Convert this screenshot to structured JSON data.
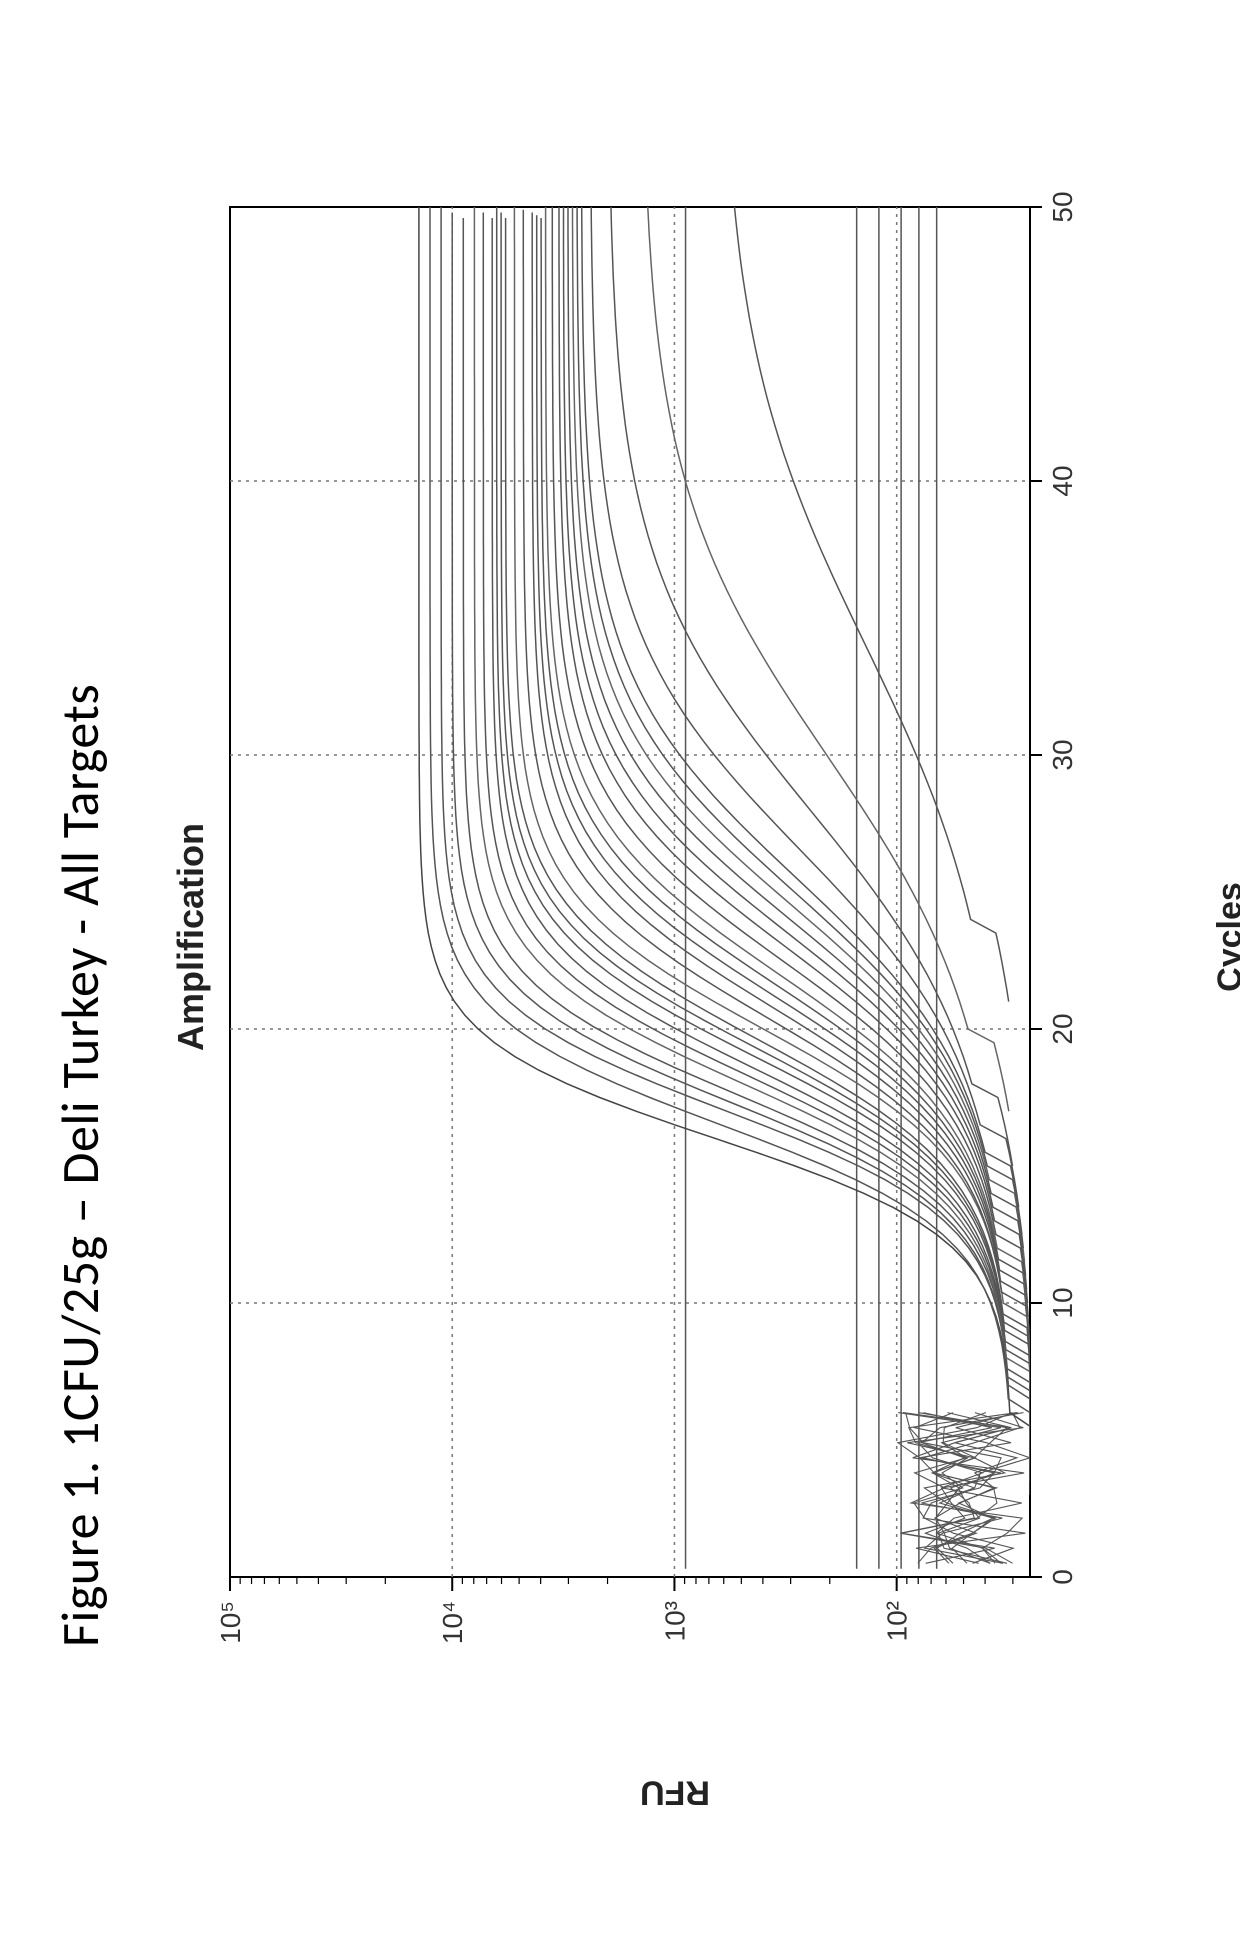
{
  "figure": {
    "title": "Figure 1. 1CFU/25g – Deli Turkey - All Targets",
    "title_fontsize": 52,
    "title_color": "#000000"
  },
  "chart": {
    "type": "line",
    "inner_title": "Amplification",
    "inner_title_fontsize": 36,
    "inner_title_weight": "bold",
    "xlabel": "Cycles",
    "ylabel": "RFU",
    "label_fontsize": 34,
    "label_weight": "bold",
    "background_color": "#ffffff",
    "axis_color": "#000000",
    "grid_color": "#777777",
    "grid_dash": "3 5",
    "xlim": [
      0,
      50
    ],
    "xticks": [
      0,
      10,
      20,
      30,
      40,
      50
    ],
    "yscale": "log",
    "ylim_log": [
      1.4,
      5.0
    ],
    "ytick_labels": [
      "10²",
      "10³",
      "10⁴",
      "10⁵"
    ],
    "ytick_values_log": [
      2,
      3,
      4,
      5
    ],
    "line_width": 1.5,
    "line_color_default": "#555555",
    "baseline_lines": [
      {
        "log_rfu": 2.95,
        "color": "#555555"
      },
      {
        "log_rfu": 2.18,
        "color": "#555555"
      },
      {
        "log_rfu": 2.08,
        "color": "#555555"
      },
      {
        "log_rfu": 1.98,
        "color": "#555555"
      },
      {
        "log_rfu": 1.9,
        "color": "#555555"
      },
      {
        "log_rfu": 1.82,
        "color": "#555555"
      }
    ],
    "early_cycle_noise": {
      "x_range": [
        0.5,
        6
      ],
      "log_rfu_range": [
        1.45,
        1.95
      ],
      "color": "#555555",
      "n_lines": 14
    },
    "sigmoid_curves": [
      {
        "mid_cycle": 16.0,
        "steepness": 0.55,
        "top_log_rfu": 4.15,
        "color": "#444444"
      },
      {
        "mid_cycle": 16.5,
        "steepness": 0.5,
        "top_log_rfu": 4.1,
        "color": "#555555"
      },
      {
        "mid_cycle": 17.0,
        "steepness": 0.5,
        "top_log_rfu": 4.05,
        "color": "#555555"
      },
      {
        "mid_cycle": 17.3,
        "steepness": 0.48,
        "top_log_rfu": 4.0,
        "color": "#555555"
      },
      {
        "mid_cycle": 17.6,
        "steepness": 0.47,
        "top_log_rfu": 3.95,
        "color": "#555555"
      },
      {
        "mid_cycle": 18.0,
        "steepness": 0.45,
        "top_log_rfu": 3.9,
        "color": "#656565"
      },
      {
        "mid_cycle": 18.3,
        "steepness": 0.44,
        "top_log_rfu": 3.86,
        "color": "#555555"
      },
      {
        "mid_cycle": 18.6,
        "steepness": 0.43,
        "top_log_rfu": 3.82,
        "color": "#555555"
      },
      {
        "mid_cycle": 19.0,
        "steepness": 0.42,
        "top_log_rfu": 3.8,
        "color": "#555555"
      },
      {
        "mid_cycle": 19.3,
        "steepness": 0.41,
        "top_log_rfu": 3.78,
        "color": "#555555"
      },
      {
        "mid_cycle": 19.6,
        "steepness": 0.4,
        "top_log_rfu": 3.76,
        "color": "#555555"
      },
      {
        "mid_cycle": 20.0,
        "steepness": 0.4,
        "top_log_rfu": 3.72,
        "color": "#656565"
      },
      {
        "mid_cycle": 20.4,
        "steepness": 0.38,
        "top_log_rfu": 3.68,
        "color": "#555555"
      },
      {
        "mid_cycle": 20.8,
        "steepness": 0.37,
        "top_log_rfu": 3.64,
        "color": "#555555"
      },
      {
        "mid_cycle": 21.2,
        "steepness": 0.36,
        "top_log_rfu": 3.62,
        "color": "#555555"
      },
      {
        "mid_cycle": 21.6,
        "steepness": 0.35,
        "top_log_rfu": 3.6,
        "color": "#555555"
      },
      {
        "mid_cycle": 22.0,
        "steepness": 0.34,
        "top_log_rfu": 3.58,
        "color": "#656565"
      },
      {
        "mid_cycle": 22.5,
        "steepness": 0.33,
        "top_log_rfu": 3.55,
        "color": "#555555"
      },
      {
        "mid_cycle": 23.0,
        "steepness": 0.32,
        "top_log_rfu": 3.52,
        "color": "#555555"
      },
      {
        "mid_cycle": 23.5,
        "steepness": 0.31,
        "top_log_rfu": 3.5,
        "color": "#555555"
      },
      {
        "mid_cycle": 24.0,
        "steepness": 0.3,
        "top_log_rfu": 3.48,
        "color": "#555555"
      },
      {
        "mid_cycle": 24.5,
        "steepness": 0.29,
        "top_log_rfu": 3.46,
        "color": "#656565"
      },
      {
        "mid_cycle": 25.0,
        "steepness": 0.28,
        "top_log_rfu": 3.44,
        "color": "#555555"
      },
      {
        "mid_cycle": 25.5,
        "steepness": 0.27,
        "top_log_rfu": 3.42,
        "color": "#555555"
      },
      {
        "mid_cycle": 26.5,
        "steepness": 0.25,
        "top_log_rfu": 3.38,
        "color": "#555555"
      },
      {
        "mid_cycle": 28.0,
        "steepness": 0.22,
        "top_log_rfu": 3.3,
        "color": "#555555"
      },
      {
        "mid_cycle": 30.0,
        "steepness": 0.2,
        "top_log_rfu": 3.15,
        "color": "#656565"
      },
      {
        "mid_cycle": 34.0,
        "steepness": 0.18,
        "top_log_rfu": 2.8,
        "color": "#555555"
      }
    ],
    "bottom_log_rfu_start": 1.48,
    "tick_font": {
      "family": "Arial",
      "size": 28,
      "color": "#333333"
    },
    "axis_line_width": 2
  }
}
